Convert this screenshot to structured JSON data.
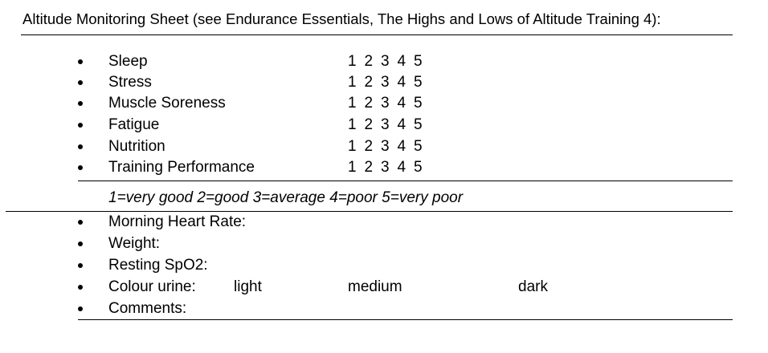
{
  "title": "Altitude Monitoring Sheet (see Endurance Essentials, The Highs and Lows of Altitude Training 4):",
  "rating_items": [
    {
      "label": "Sleep",
      "scale": [
        "1",
        "2",
        "3",
        "4",
        "5"
      ]
    },
    {
      "label": "Stress",
      "scale": [
        "1",
        "2",
        "3",
        "4",
        "5"
      ]
    },
    {
      "label": "Muscle Soreness",
      "scale": [
        "1",
        "2",
        "3",
        "4",
        "5"
      ]
    },
    {
      "label": "Fatigue",
      "scale": [
        "1",
        "2",
        "3",
        "4",
        "5"
      ]
    },
    {
      "label": "Nutrition",
      "scale": [
        "1",
        "2",
        "3",
        "4",
        "5"
      ]
    },
    {
      "label": "Training Performance",
      "scale": [
        "1",
        "2",
        "3",
        "4",
        "5"
      ]
    }
  ],
  "legend": "1=very good 2=good 3=average 4=poor 5=very poor",
  "measurements": {
    "morning_heart_rate": "Morning Heart Rate:",
    "weight": "Weight:",
    "resting_spo2": "Resting SpO2:",
    "colour_urine": {
      "label": "Colour urine:",
      "options": [
        "light",
        "medium",
        "dark"
      ]
    },
    "comments": "Comments:"
  }
}
